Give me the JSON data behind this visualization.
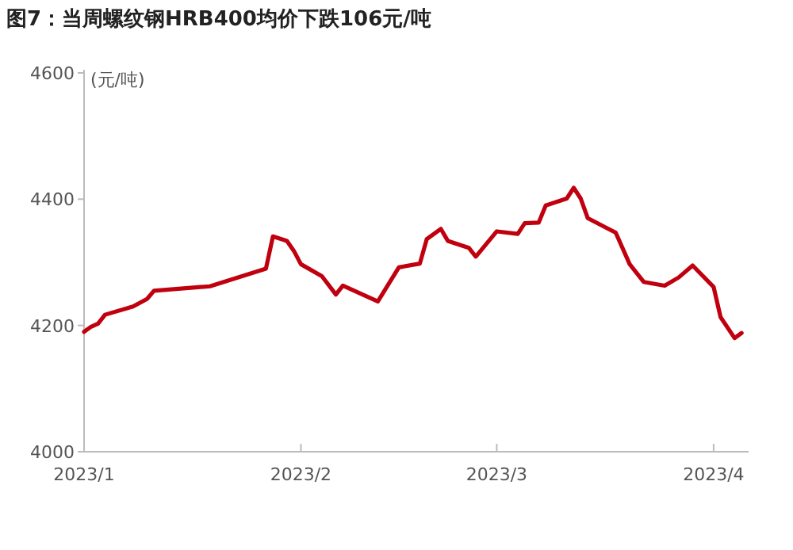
{
  "chart_data": {
    "type": "line",
    "title": "图7：当周螺纹钢HRB400均价下跌106元/吨",
    "ylabel": "(元/吨)",
    "x": [
      "2023-01-01",
      "2023-01-02",
      "2023-01-03",
      "2023-01-04",
      "2023-01-08",
      "2023-01-10",
      "2023-01-11",
      "2023-01-19",
      "2023-01-27",
      "2023-01-28",
      "2023-01-30",
      "2023-01-31",
      "2023-02-01",
      "2023-02-04",
      "2023-02-06",
      "2023-02-07",
      "2023-02-12",
      "2023-02-15",
      "2023-02-18",
      "2023-02-19",
      "2023-02-21",
      "2023-02-22",
      "2023-02-25",
      "2023-02-26",
      "2023-03-01",
      "2023-03-04",
      "2023-03-05",
      "2023-03-07",
      "2023-03-08",
      "2023-03-11",
      "2023-03-12",
      "2023-03-13",
      "2023-03-14",
      "2023-03-18",
      "2023-03-20",
      "2023-03-22",
      "2023-03-25",
      "2023-03-27",
      "2023-03-29",
      "2023-04-01",
      "2023-04-02",
      "2023-04-04",
      "2023-04-05"
    ],
    "series": [
      {
        "color": "#c0000f",
        "values": [
          4190,
          4198,
          4203,
          4217,
          4230,
          4242,
          4255,
          4262,
          4290,
          4341,
          4334,
          4318,
          4297,
          4278,
          4249,
          4263,
          4238,
          4292,
          4298,
          4337,
          4353,
          4334,
          4323,
          4309,
          4349,
          4345,
          4362,
          4363,
          4390,
          4401,
          4418,
          4401,
          4370,
          4347,
          4297,
          4269,
          4263,
          4276,
          4295,
          4261,
          4213,
          4180,
          4188
        ]
      }
    ],
    "xlim": [
      "2023-01-01",
      "2023-04-06"
    ],
    "xticks": [
      {
        "value": "2023-01-01",
        "label": "2023/1"
      },
      {
        "value": "2023-02-01",
        "label": "2023/2"
      },
      {
        "value": "2023-03-01",
        "label": "2023/3"
      },
      {
        "value": "2023-04-01",
        "label": "2023/4"
      }
    ],
    "ylim": [
      4000,
      4600
    ],
    "yticks": [
      4000,
      4200,
      4400,
      4600
    ],
    "grid": false,
    "line_style": "solid"
  }
}
